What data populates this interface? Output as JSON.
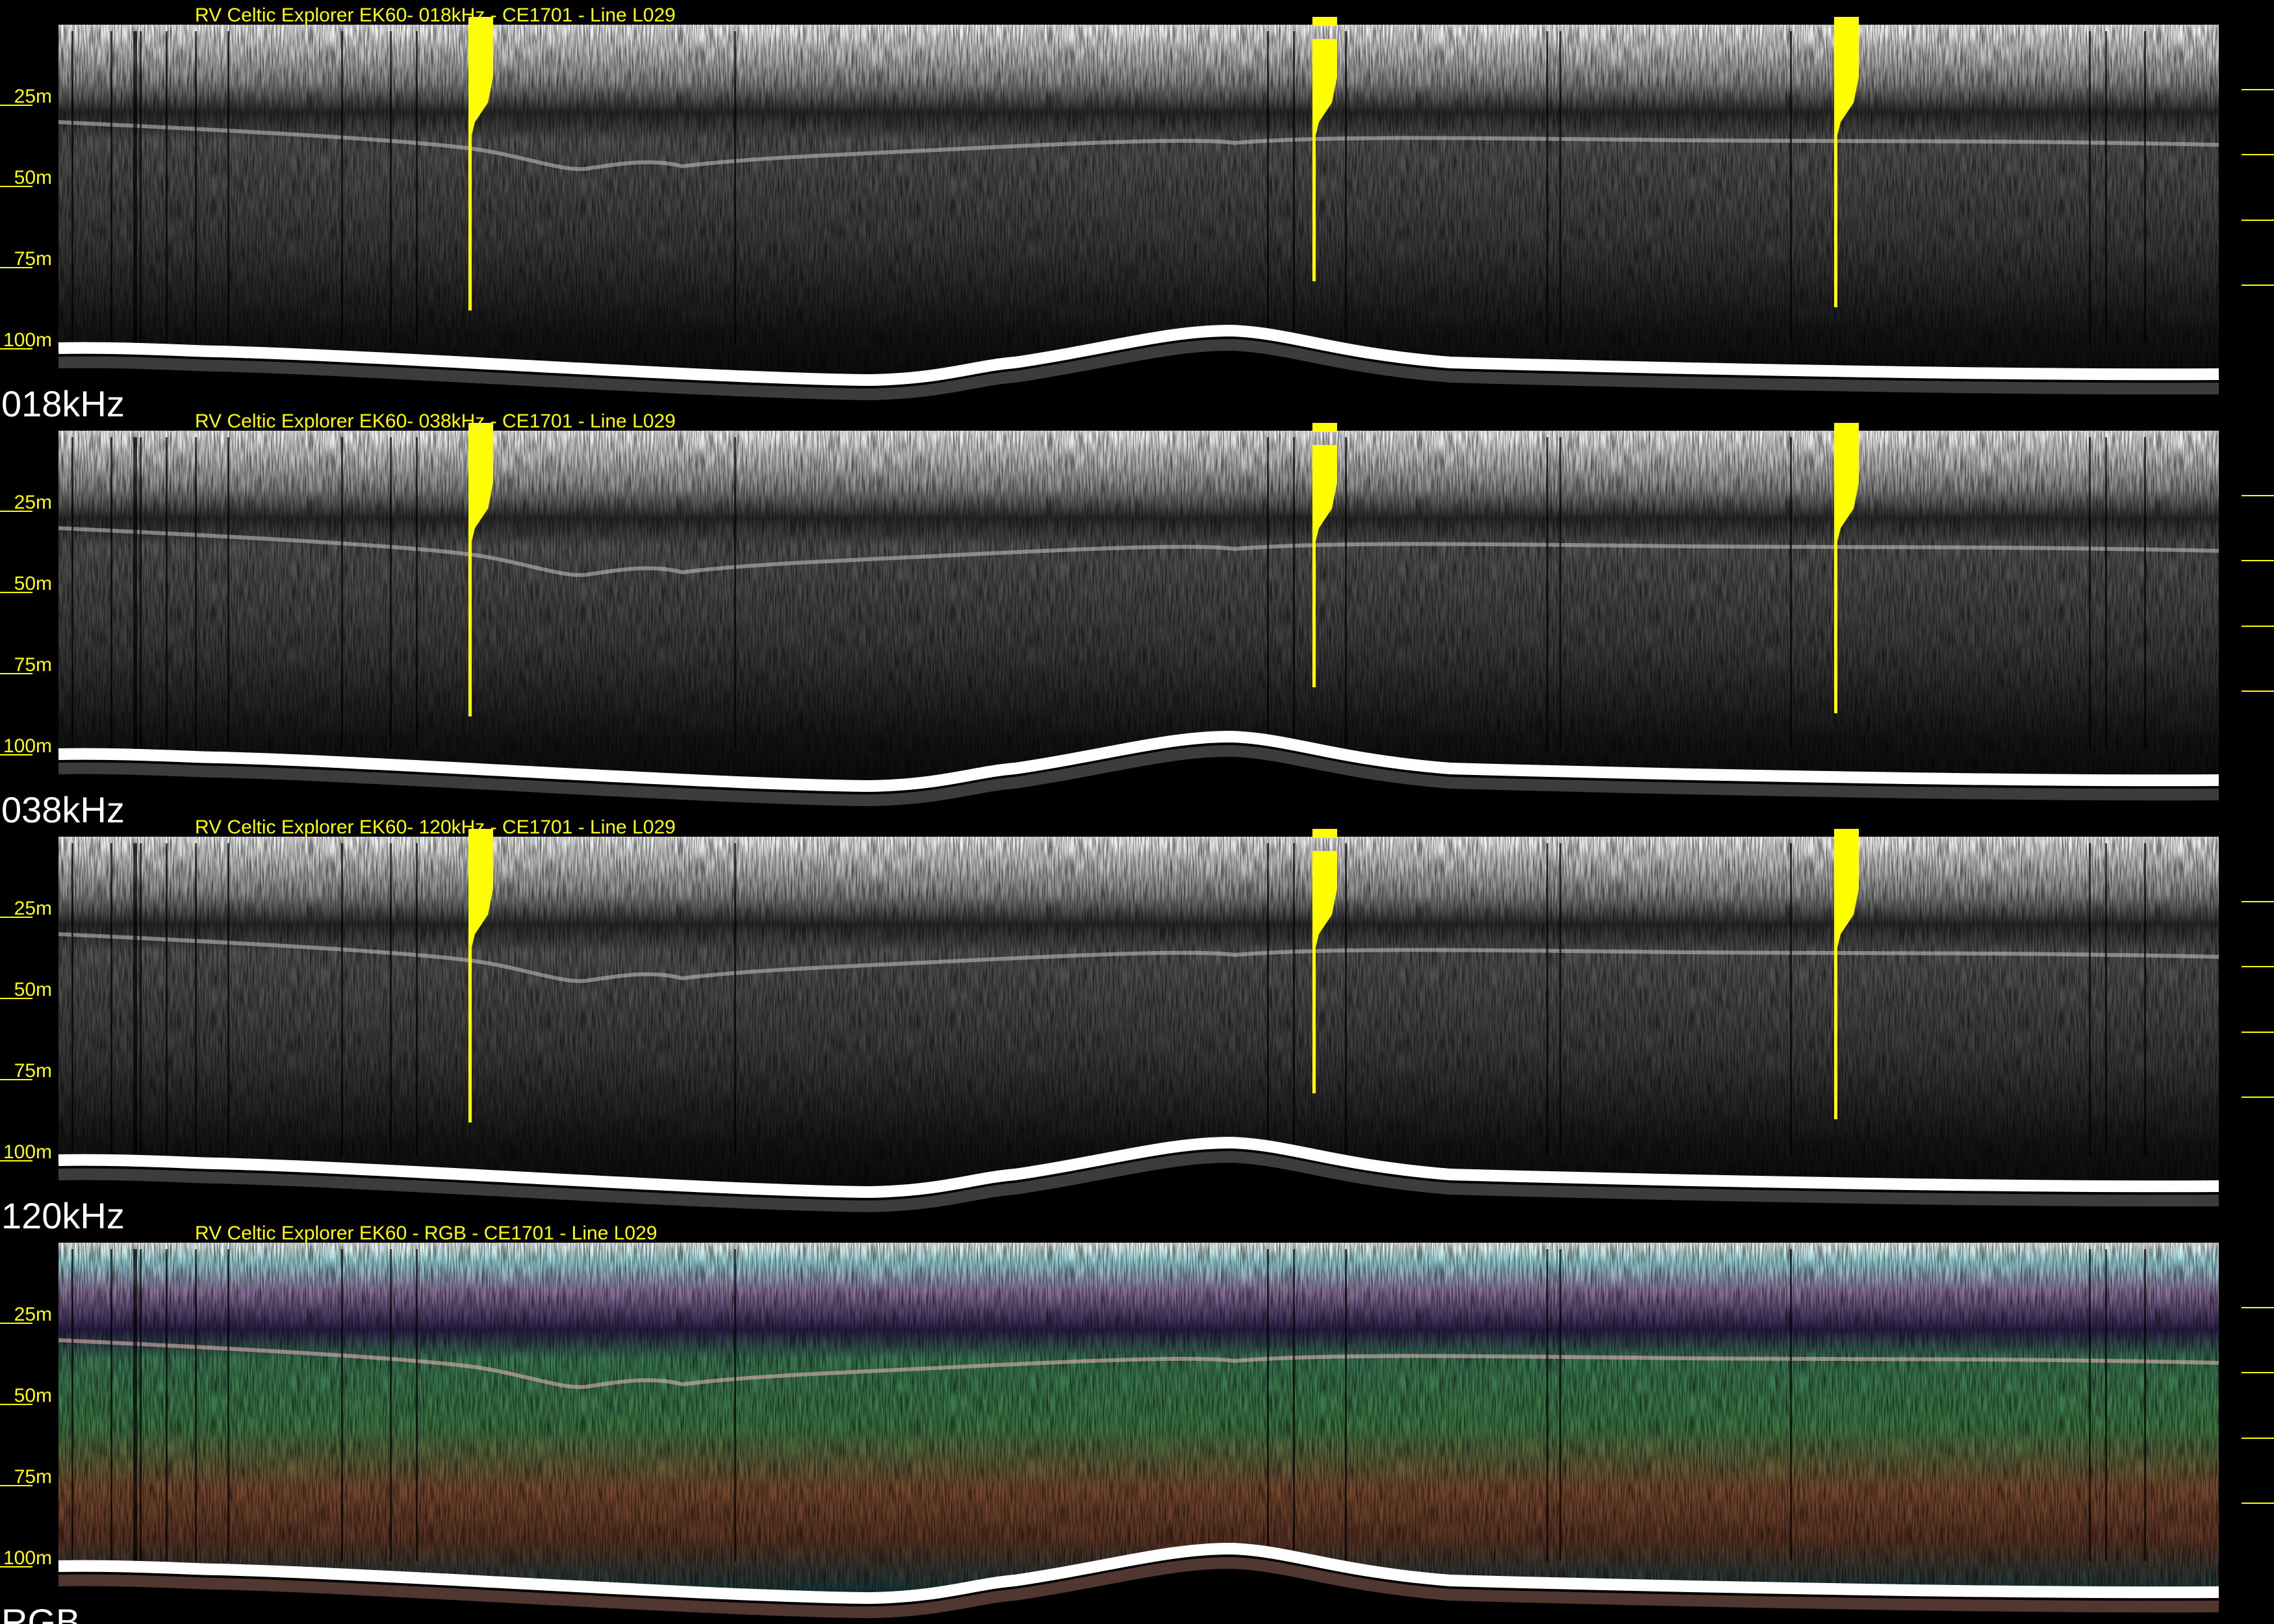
{
  "panels": [
    {
      "title": "RV Celtic Explorer EK60- 018kHz - CE1701 - Line L029",
      "label": "018kHz",
      "mode": "gray",
      "markers": true
    },
    {
      "title": "RV Celtic Explorer EK60- 038kHz - CE1701 - Line L029",
      "label": "038kHz",
      "mode": "gray",
      "markers": true
    },
    {
      "title": "RV Celtic Explorer EK60- 120kHz - CE1701 - Line L029",
      "label": "120kHz",
      "mode": "gray",
      "markers": true
    },
    {
      "title": "RV Celtic Explorer EK60 - RGB - CE1701 - Line L029",
      "label": "RGB",
      "mode": "rgb",
      "markers": false
    }
  ],
  "depth_ticks": [
    "25m",
    "50m",
    "75m",
    "100m"
  ],
  "colors": {
    "annotation": "#ffff00",
    "background": "#000000",
    "seabed": "#ffffff"
  }
}
